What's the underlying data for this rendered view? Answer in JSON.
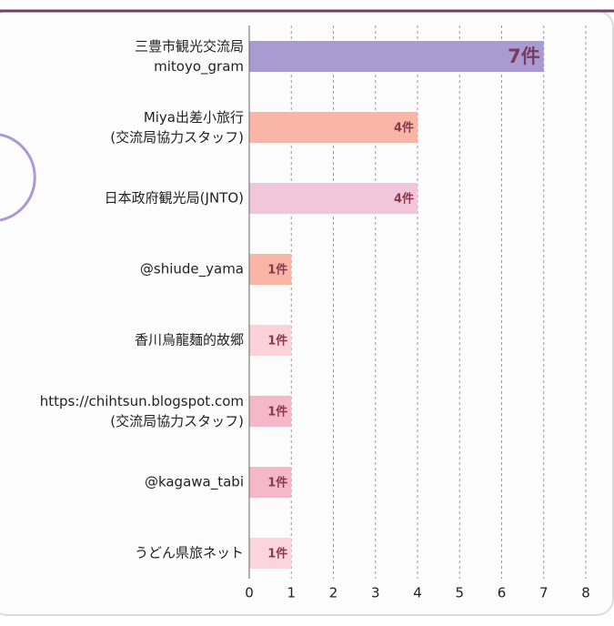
{
  "chart_data": {
    "type": "barh",
    "categories": [
      "三豊市観光交流局\nmitoyo_gram",
      "Miya出差小旅行\n(交流局協力スタッフ)",
      "日本政府観光局(JNTO)",
      "@shiude_yama",
      "香川烏龍麺的故郷",
      "https://chihtsun.blogspot.com\n(交流局協力スタッフ)",
      "@kagawa_tabi",
      "うどん県旅ネット"
    ],
    "values": [
      7,
      4,
      4,
      1,
      1,
      1,
      1,
      1
    ],
    "value_labels": [
      "7件",
      "4件",
      "4件",
      "1件",
      "1件",
      "1件",
      "1件",
      "1件"
    ],
    "colors": [
      "#a99bd2",
      "#f9b6a6",
      "#f2c6da",
      "#f9b6a6",
      "#fbd2d9",
      "#f5b8c8",
      "#f5b8c8",
      "#fbd4df"
    ],
    "xlim": [
      0,
      8
    ],
    "xticks": [
      0,
      1,
      2,
      3,
      4,
      5,
      6,
      7,
      8
    ],
    "grid": true
  }
}
